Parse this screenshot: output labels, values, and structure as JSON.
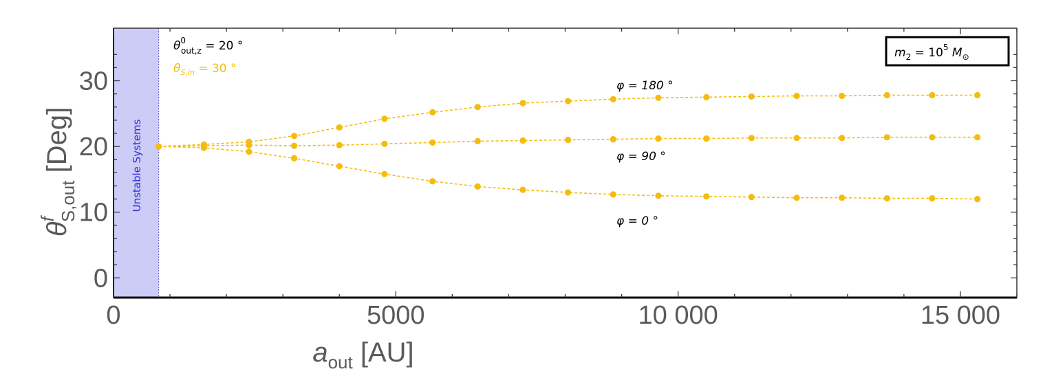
{
  "chart_data": {
    "type": "line",
    "xlabel": {
      "main": "a",
      "sub": "out",
      "unit": " [AU]"
    },
    "ylabel": {
      "main": "θ",
      "sup": "f",
      "sub": "S,out",
      "unit": " [Deg]"
    },
    "xlim": [
      0,
      16000
    ],
    "ylim": [
      -3,
      38
    ],
    "xticks": [
      0,
      5000,
      10000,
      15000
    ],
    "xtick_labels": [
      "0",
      "5000",
      "10 000",
      "15 000"
    ],
    "yticks": [
      0,
      10,
      20,
      30
    ],
    "ytick_labels": [
      "0",
      "10",
      "20",
      "30"
    ],
    "x": [
      800,
      1600,
      2400,
      3200,
      4000,
      4800,
      5650,
      6450,
      7250,
      8050,
      8850,
      9650,
      10500,
      11300,
      12100,
      12900,
      13700,
      14500,
      15300
    ],
    "series": [
      {
        "name": "φ = 180 °",
        "values": [
          20.0,
          20.3,
          20.7,
          21.6,
          22.9,
          24.2,
          25.2,
          26.0,
          26.6,
          26.9,
          27.2,
          27.4,
          27.5,
          27.6,
          27.7,
          27.7,
          27.8,
          27.8,
          27.8
        ]
      },
      {
        "name": "φ = 90 °",
        "values": [
          20.0,
          20.1,
          20.2,
          20.1,
          20.2,
          20.4,
          20.6,
          20.8,
          20.9,
          21.0,
          21.1,
          21.2,
          21.2,
          21.3,
          21.3,
          21.3,
          21.4,
          21.4,
          21.4
        ]
      },
      {
        "name": "φ = 0 °",
        "values": [
          20.0,
          19.8,
          19.2,
          18.2,
          17.0,
          15.8,
          14.7,
          13.9,
          13.4,
          13.0,
          12.7,
          12.5,
          12.4,
          12.3,
          12.2,
          12.2,
          12.1,
          12.1,
          12.0
        ]
      }
    ],
    "series_color": "#f5bc0e",
    "unstable_region": {
      "x_range": [
        0,
        800
      ],
      "label": "Unstable Systems",
      "fill": "#ccccf7",
      "text_color": "#2b2bd6"
    },
    "annotations": {
      "theta_out": {
        "main": "θ",
        "sup": "0",
        "sub": "out,z",
        "rest": " = 20 °"
      },
      "theta_in": {
        "main": "θ",
        "sub": "S,in",
        "rest": " = 30 °"
      },
      "mass_box": {
        "main": "m",
        "sub": "2",
        "mid": " = 10",
        "sup": "5",
        "unit": " M",
        "unit_sub": "⊙"
      }
    },
    "grid": false,
    "legend": "none"
  }
}
